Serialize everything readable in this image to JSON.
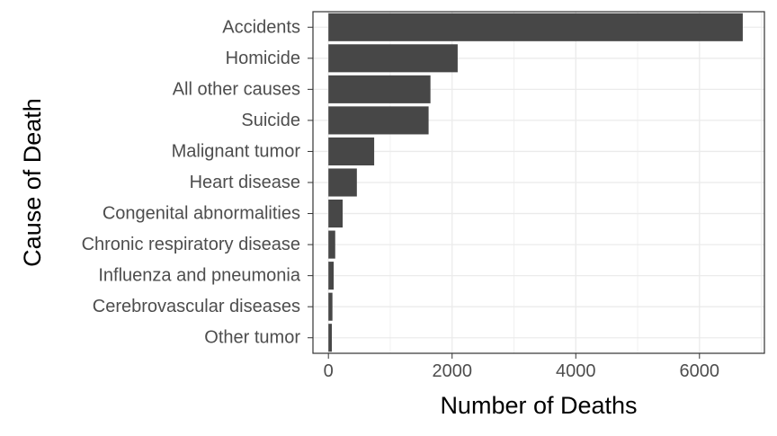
{
  "chart_data": {
    "type": "bar",
    "orientation": "horizontal",
    "title": "",
    "xlabel": "Number of Deaths",
    "ylabel": "Cause of Death",
    "categories": [
      "Accidents",
      "Homicide",
      "All other causes",
      "Suicide",
      "Malignant tumor",
      "Heart disease",
      "Congenital abnormalities",
      "Chronic respiratory disease",
      "Influenza and pneumonia",
      "Cerebrovascular diseases",
      "Other tumor"
    ],
    "values": [
      6700,
      2090,
      1650,
      1620,
      740,
      460,
      230,
      110,
      85,
      65,
      55
    ],
    "xlim": [
      -250,
      7050
    ],
    "xticks": [
      0,
      2000,
      4000,
      6000
    ],
    "xtick_labels": [
      "0",
      "2000",
      "4000",
      "6000"
    ],
    "grid": true,
    "bar_color": "#474747",
    "grid_color": "#ebebeb",
    "panel_border_color": "#333333"
  }
}
